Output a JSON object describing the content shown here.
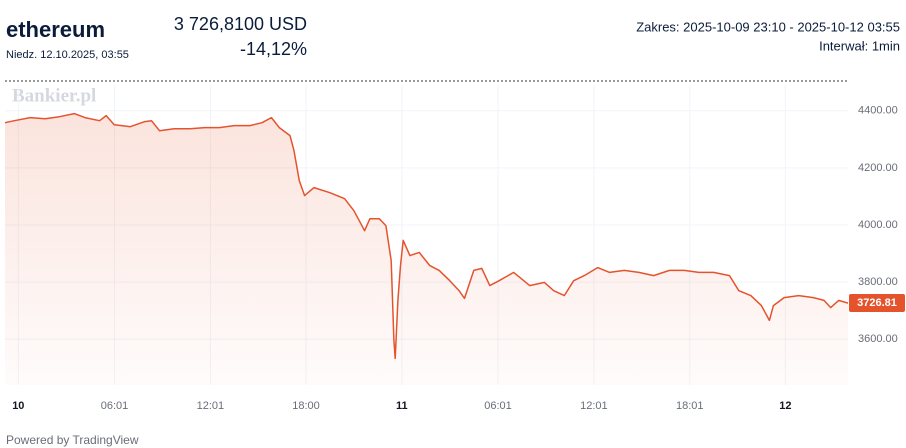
{
  "header": {
    "title": "ethereum",
    "date": "Niedz. 12.10.2025, 03:55",
    "price": "3 726,8100 USD",
    "change": "-14,12%",
    "range": "Zakres: 2025-10-09 23:10 - 2025-10-12 03:55",
    "interval": "Interwał: 1min",
    "watermark": "Bankier.pl",
    "footer": "Powered by TradingView"
  },
  "chart_data": {
    "type": "line",
    "x": [
      "2025-10-09 23:10",
      "2025-10-09 23:45",
      "2025-10-10 00:45",
      "2025-10-10 01:40",
      "2025-10-10 02:35",
      "2025-10-10 03:30",
      "2025-10-10 04:10",
      "2025-10-10 05:05",
      "2025-10-10 05:30",
      "2025-10-10 06:00",
      "2025-10-10 07:00",
      "2025-10-10 07:55",
      "2025-10-10 08:20",
      "2025-10-10 08:50",
      "2025-10-10 09:45",
      "2025-10-10 10:45",
      "2025-10-10 11:40",
      "2025-10-10 12:35",
      "2025-10-10 13:30",
      "2025-10-10 14:30",
      "2025-10-10 15:15",
      "2025-10-10 15:50",
      "2025-10-10 16:20",
      "2025-10-10 17:00",
      "2025-10-10 17:15",
      "2025-10-10 17:35",
      "2025-10-10 17:55",
      "2025-10-10 18:30",
      "2025-10-10 19:30",
      "2025-10-10 20:25",
      "2025-10-10 21:00",
      "2025-10-10 21:40",
      "2025-10-10 22:00",
      "2025-10-10 22:35",
      "2025-10-10 23:00",
      "2025-10-10 23:20",
      "2025-10-10 23:30",
      "2025-10-10 23:35",
      "2025-10-10 23:45",
      "2025-10-10 23:55",
      "2025-10-11 00:05",
      "2025-10-11 00:30",
      "2025-10-11 01:05",
      "2025-10-11 01:45",
      "2025-10-11 02:20",
      "2025-10-11 03:00",
      "2025-10-11 03:35",
      "2025-10-11 03:55",
      "2025-10-11 04:30",
      "2025-10-11 05:00",
      "2025-10-11 05:30",
      "2025-10-11 06:05",
      "2025-10-11 07:00",
      "2025-10-11 08:00",
      "2025-10-11 08:55",
      "2025-10-11 09:30",
      "2025-10-11 10:10",
      "2025-10-11 10:45",
      "2025-10-11 11:25",
      "2025-10-11 12:15",
      "2025-10-11 13:00",
      "2025-10-11 13:55",
      "2025-10-11 14:50",
      "2025-10-11 15:45",
      "2025-10-11 16:45",
      "2025-10-11 17:40",
      "2025-10-11 18:35",
      "2025-10-11 19:30",
      "2025-10-11 20:30",
      "2025-10-11 21:05",
      "2025-10-11 21:50",
      "2025-10-11 22:30",
      "2025-10-11 23:00",
      "2025-10-11 23:15",
      "2025-10-11 23:55",
      "2025-10-12 00:50",
      "2025-10-12 01:45",
      "2025-10-12 02:25",
      "2025-10-12 02:50",
      "2025-10-12 03:20",
      "2025-10-12 03:55"
    ],
    "series": [
      {
        "name": "ethereum",
        "color": "#e5532d",
        "values": [
          4358,
          4365,
          4376,
          4372,
          4379,
          4390,
          4376,
          4365,
          4383,
          4351,
          4344,
          4362,
          4365,
          4330,
          4337,
          4337,
          4341,
          4341,
          4348,
          4348,
          4358,
          4376,
          4341,
          4313,
          4260,
          4155,
          4103,
          4131,
          4113,
          4092,
          4050,
          3980,
          4022,
          4022,
          3998,
          3875,
          3596,
          3533,
          3736,
          3858,
          3946,
          3893,
          3904,
          3858,
          3841,
          3805,
          3770,
          3743,
          3841,
          3848,
          3788,
          3805,
          3834,
          3788,
          3799,
          3770,
          3753,
          3805,
          3823,
          3851,
          3834,
          3841,
          3834,
          3823,
          3841,
          3841,
          3834,
          3834,
          3823,
          3770,
          3753,
          3718,
          3666,
          3718,
          3746,
          3753,
          3746,
          3736,
          3711,
          3736,
          3726.81
        ]
      }
    ],
    "xlim": [
      "2025-10-09 23:10",
      "2025-10-12 03:55"
    ],
    "xticks": [
      {
        "value": "2025-10-10 00:00",
        "label": "10"
      },
      {
        "value": "2025-10-10 06:01",
        "label": "06:01"
      },
      {
        "value": "2025-10-10 12:01",
        "label": "12:01"
      },
      {
        "value": "2025-10-10 18:00",
        "label": "18:00"
      },
      {
        "value": "2025-10-11 00:00",
        "label": "11"
      },
      {
        "value": "2025-10-11 06:01",
        "label": "06:01"
      },
      {
        "value": "2025-10-11 12:01",
        "label": "12:01"
      },
      {
        "value": "2025-10-11 18:01",
        "label": "18:01"
      },
      {
        "value": "2025-10-12 00:00",
        "label": "12"
      }
    ],
    "ylim": [
      3440,
      4490
    ],
    "yticks": [
      {
        "value": 3600,
        "label": "3600.00"
      },
      {
        "value": 3800,
        "label": "3800.00"
      },
      {
        "value": 4000,
        "label": "4000.00"
      },
      {
        "value": 4200,
        "label": "4200.00"
      },
      {
        "value": 4400,
        "label": "4400.00"
      }
    ],
    "grid": true
  }
}
